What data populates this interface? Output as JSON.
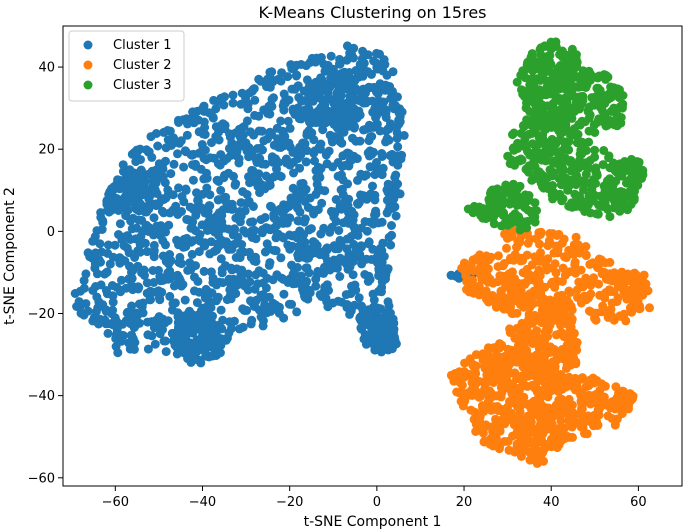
{
  "chart_data": {
    "type": "scatter",
    "title": "K-Means Clustering on 15res",
    "xlabel": "t-SNE Component 1",
    "ylabel": "t-SNE Component 2",
    "xlim": [
      -72,
      70
    ],
    "ylim": [
      -62,
      50
    ],
    "xticks": [
      -60,
      -40,
      -20,
      0,
      20,
      40,
      60
    ],
    "yticks": [
      -60,
      -40,
      -20,
      0,
      20,
      40
    ],
    "grid": false,
    "legend_position": "top-left",
    "series": [
      {
        "name": "Cluster 1",
        "color": "#1f77b4",
        "regions": [
          {
            "shape": "poly",
            "poly": [
              [
                -70,
                -17
              ],
              [
                -63,
                6
              ],
              [
                -57,
                19
              ],
              [
                -52,
                23
              ],
              [
                -42,
                30
              ],
              [
                -33,
                35
              ],
              [
                -22,
                40
              ],
              [
                -13,
                43
              ],
              [
                -7,
                46
              ],
              [
                -2,
                45
              ],
              [
                2,
                44
              ],
              [
                5,
                36
              ],
              [
                7,
                25
              ],
              [
                6,
                15
              ],
              [
                5,
                5
              ],
              [
                3,
                -5
              ],
              [
                2,
                -15
              ],
              [
                4,
                -22
              ],
              [
                4,
                -28
              ],
              [
                -1,
                -29
              ],
              [
                -4,
                -24
              ],
              [
                -8,
                -19
              ],
              [
                -14,
                -19
              ],
              [
                -22,
                -22
              ],
              [
                -33,
                -25
              ],
              [
                -37,
                -32
              ],
              [
                -46,
                -30
              ],
              [
                -52,
                -29
              ],
              [
                -60,
                -30
              ],
              [
                -64,
                -26
              ]
            ],
            "n": 1500
          },
          {
            "shape": "poly",
            "poly": [
              [
                -45,
                -20
              ],
              [
                -38,
                -18
              ],
              [
                -36,
                -30
              ],
              [
                -42,
                -33
              ],
              [
                -47,
                -28
              ]
            ],
            "n": 120
          },
          {
            "shape": "poly",
            "poly": [
              [
                -4,
                -18
              ],
              [
                3,
                -19
              ],
              [
                5,
                -28
              ],
              [
                0,
                -30
              ],
              [
                -4,
                -26
              ]
            ],
            "n": 90
          },
          {
            "shape": "poly",
            "poly": [
              [
                -18,
                27
              ],
              [
                -6,
                24
              ],
              [
                -2,
                35
              ],
              [
                -10,
                40
              ],
              [
                -17,
                35
              ]
            ],
            "n": 110
          },
          {
            "shape": "poly",
            "poly": [
              [
                -62,
                5
              ],
              [
                -50,
                4
              ],
              [
                -48,
                15
              ],
              [
                -58,
                15
              ],
              [
                -62,
                10
              ]
            ],
            "n": 100
          },
          {
            "shape": "poly",
            "poly": [
              [
                17,
                -10
              ],
              [
                23,
                -9
              ],
              [
                23,
                -12
              ],
              [
                17,
                -12
              ]
            ],
            "n": 8
          }
        ]
      },
      {
        "name": "Cluster 2",
        "color": "#ff7f0e",
        "regions": [
          {
            "shape": "poly",
            "poly": [
              [
                18,
                -9
              ],
              [
                22,
                -6
              ],
              [
                27,
                -5
              ],
              [
                32,
                -10
              ],
              [
                34,
                -16
              ],
              [
                32,
                -21
              ],
              [
                26,
                -18
              ],
              [
                20,
                -14
              ]
            ],
            "n": 110
          },
          {
            "shape": "poly",
            "poly": [
              [
                29,
                1
              ],
              [
                36,
                0
              ],
              [
                44,
                0
              ],
              [
                50,
                -5
              ],
              [
                56,
                -9
              ],
              [
                62,
                -12
              ],
              [
                63,
                -19
              ],
              [
                58,
                -22
              ],
              [
                50,
                -22
              ],
              [
                45,
                -19
              ],
              [
                40,
                -24
              ],
              [
                34,
                -20
              ],
              [
                30,
                -10
              ]
            ],
            "n": 260
          },
          {
            "shape": "poly",
            "poly": [
              [
                38,
                -18
              ],
              [
                46,
                -18
              ],
              [
                46,
                -33
              ],
              [
                40,
                -36
              ],
              [
                33,
                -30
              ],
              [
                30,
                -24
              ]
            ],
            "n": 160
          },
          {
            "shape": "poly",
            "poly": [
              [
                17,
                -35
              ],
              [
                22,
                -30
              ],
              [
                28,
                -27
              ],
              [
                34,
                -30
              ],
              [
                40,
                -35
              ],
              [
                50,
                -35
              ],
              [
                59,
                -40
              ],
              [
                56,
                -48
              ],
              [
                48,
                -50
              ],
              [
                42,
                -52
              ],
              [
                38,
                -57
              ],
              [
                30,
                -54
              ],
              [
                24,
                -51
              ],
              [
                20,
                -45
              ]
            ],
            "n": 560
          },
          {
            "shape": "poly",
            "poly": [
              [
                54,
                -10
              ],
              [
                62,
                -10
              ],
              [
                62,
                -16
              ],
              [
                56,
                -17
              ]
            ],
            "n": 40
          }
        ]
      },
      {
        "name": "Cluster 3",
        "color": "#2ca02c",
        "regions": [
          {
            "shape": "poly",
            "poly": [
              [
                32,
                36
              ],
              [
                34,
                42
              ],
              [
                40,
                47
              ],
              [
                44,
                46
              ],
              [
                48,
                40
              ],
              [
                53,
                38
              ],
              [
                57,
                34
              ],
              [
                56,
                26
              ],
              [
                50,
                24
              ],
              [
                44,
                25
              ],
              [
                38,
                25
              ],
              [
                34,
                30
              ]
            ],
            "n": 320
          },
          {
            "shape": "poly",
            "poly": [
              [
                30,
                25
              ],
              [
                36,
                28
              ],
              [
                44,
                25
              ],
              [
                52,
                20
              ],
              [
                56,
                15
              ],
              [
                60,
                10
              ],
              [
                58,
                5
              ],
              [
                52,
                3
              ],
              [
                46,
                5
              ],
              [
                40,
                8
              ],
              [
                36,
                12
              ],
              [
                30,
                16
              ]
            ],
            "n": 280
          },
          {
            "shape": "poly",
            "poly": [
              [
                26,
                11
              ],
              [
                32,
                12
              ],
              [
                36,
                8
              ],
              [
                38,
                2
              ],
              [
                32,
                0
              ],
              [
                26,
                2
              ],
              [
                24,
                6
              ]
            ],
            "n": 100
          },
          {
            "shape": "poly",
            "poly": [
              [
                52,
                9
              ],
              [
                58,
                8
              ],
              [
                62,
                12
              ],
              [
                60,
                18
              ],
              [
                54,
                17
              ]
            ],
            "n": 60
          },
          {
            "shape": "poly",
            "poly": [
              [
                20,
                6
              ],
              [
                26,
                7
              ],
              [
                26,
                3
              ],
              [
                20,
                3
              ]
            ],
            "n": 10
          }
        ]
      }
    ]
  }
}
